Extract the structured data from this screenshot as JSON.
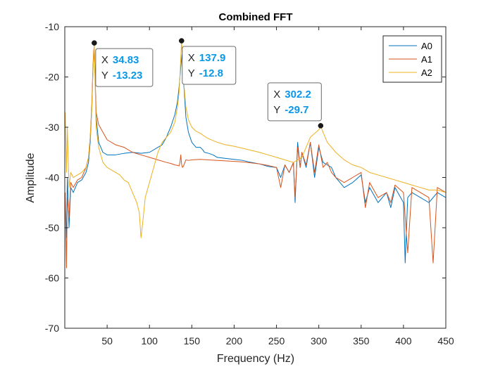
{
  "chart_data": {
    "type": "line",
    "title": "Combined FFT",
    "xlabel": "Frequency (Hz)",
    "ylabel": "Amplitude",
    "xlim": [
      0,
      450
    ],
    "ylim": [
      -70,
      -10
    ],
    "xticks": [
      50,
      100,
      150,
      200,
      250,
      300,
      350,
      400,
      450
    ],
    "yticks": [
      -70,
      -60,
      -50,
      -40,
      -30,
      -20,
      -10
    ],
    "grid": false,
    "legend_position": "top-right",
    "series": [
      {
        "name": "A0",
        "color": "#0072BD",
        "x": [
          0.5,
          2,
          3,
          5,
          7,
          10,
          15,
          20,
          25,
          28,
          30,
          32,
          33,
          34,
          34.83,
          35.5,
          37,
          40,
          45,
          50,
          60,
          70,
          80,
          90,
          100,
          110,
          115,
          120,
          125,
          130,
          133,
          135,
          137,
          138.5,
          140,
          143,
          146,
          150,
          155,
          160,
          163,
          165,
          170,
          175,
          180,
          190,
          200,
          210,
          220,
          230,
          240,
          250,
          255,
          260,
          265,
          270,
          272,
          275,
          278,
          280,
          285,
          290,
          295,
          300,
          305,
          310,
          315,
          320,
          330,
          340,
          350,
          355,
          360,
          370,
          380,
          385,
          390,
          400,
          402,
          405,
          410,
          420,
          430,
          440,
          450
        ],
        "y": [
          -45,
          -52,
          -40,
          -50,
          -42,
          -43,
          -41,
          -40.5,
          -39,
          -37,
          -33,
          -26,
          -20,
          -16,
          -14.5,
          -18,
          -28,
          -33,
          -35,
          -35.5,
          -35.5,
          -35.2,
          -35,
          -35.2,
          -35,
          -34,
          -33.5,
          -32,
          -30,
          -27.5,
          -25,
          -22,
          -18,
          -15.5,
          -20,
          -28,
          -31,
          -33,
          -34,
          -34,
          -34.5,
          -35,
          -35.2,
          -35.5,
          -36,
          -36.2,
          -36.4,
          -36.6,
          -37,
          -37.3,
          -37.8,
          -38,
          -40,
          -37.5,
          -39,
          -37,
          -45,
          -33,
          -38,
          -35,
          -38,
          -33,
          -40,
          -34,
          -37,
          -37.5,
          -38,
          -40,
          -42,
          -41,
          -39.5,
          -45,
          -42,
          -45,
          -43,
          -46,
          -42,
          -45,
          -57,
          -44,
          -43,
          -44,
          -45,
          -43,
          -44
        ]
      },
      {
        "name": "A1",
        "color": "#D95319",
        "x": [
          0.5,
          2,
          3,
          5,
          7,
          10,
          15,
          20,
          25,
          28,
          30,
          32,
          33,
          34,
          34.83,
          35.5,
          37,
          40,
          45,
          50,
          60,
          70,
          80,
          90,
          100,
          110,
          120,
          125,
          130,
          133,
          135,
          136,
          137,
          138,
          139,
          140,
          143,
          146,
          150,
          160,
          170,
          180,
          190,
          200,
          210,
          220,
          230,
          240,
          250,
          255,
          260,
          265,
          270,
          272,
          275,
          278,
          280,
          285,
          290,
          295,
          300,
          305,
          310,
          315,
          320,
          330,
          340,
          350,
          355,
          360,
          370,
          380,
          385,
          390,
          400,
          405,
          410,
          420,
          430,
          435,
          440,
          450
        ],
        "y": [
          -43,
          -58,
          -44,
          -48,
          -41,
          -42,
          -40.5,
          -40,
          -38,
          -36,
          -32,
          -25,
          -19,
          -15,
          -13.8,
          -18,
          -27,
          -29.5,
          -31,
          -32.5,
          -33.5,
          -34,
          -35,
          -35.5,
          -36,
          -36.5,
          -37,
          -37.2,
          -37.5,
          -37.6,
          -37.7,
          -37,
          -35.5,
          -37.5,
          -38,
          -37.8,
          -36.5,
          -36.6,
          -36.5,
          -36.4,
          -36.5,
          -36.6,
          -36.7,
          -36.8,
          -36.9,
          -37.1,
          -37.3,
          -37.6,
          -38,
          -42,
          -37.5,
          -39,
          -37,
          -44,
          -34,
          -38,
          -35,
          -37.5,
          -33,
          -39,
          -33.5,
          -38,
          -37,
          -39,
          -40,
          -41,
          -40,
          -39,
          -46,
          -41,
          -44,
          -43,
          -45,
          -41.5,
          -43,
          -55,
          -42,
          -43,
          -44,
          -57,
          -42,
          -43
        ]
      },
      {
        "name": "A2",
        "color": "#EDB120",
        "x": [
          0.5,
          2,
          3,
          5,
          7,
          10,
          15,
          20,
          25,
          28,
          30,
          32,
          33,
          34,
          34.83,
          35.5,
          37,
          40,
          45,
          50,
          55,
          60,
          65,
          70,
          75,
          80,
          85,
          88,
          90,
          92,
          95,
          100,
          105,
          110,
          115,
          120,
          125,
          130,
          133,
          135,
          136.5,
          137.9,
          139,
          141,
          143,
          146,
          150,
          155,
          160,
          165,
          170,
          180,
          190,
          200,
          210,
          220,
          230,
          240,
          250,
          260,
          270,
          280,
          290,
          300,
          302.2,
          305,
          310,
          320,
          330,
          340,
          350,
          360,
          370,
          380,
          390,
          400,
          410,
          420,
          430,
          440,
          450
        ],
        "y": [
          -27,
          -39,
          -30,
          -42,
          -39,
          -40,
          -39.5,
          -39,
          -38,
          -36,
          -32,
          -26,
          -20,
          -16,
          -13.23,
          -19,
          -30,
          -34,
          -37,
          -38,
          -38.5,
          -39,
          -39.5,
          -40.5,
          -41,
          -43,
          -45,
          -47,
          -52,
          -49,
          -44,
          -41,
          -38,
          -35,
          -33,
          -32,
          -31,
          -29,
          -26,
          -23,
          -18,
          -12.8,
          -16,
          -22,
          -26,
          -28.5,
          -30,
          -30.8,
          -31.2,
          -31.8,
          -32.3,
          -33,
          -33.5,
          -33.8,
          -34.2,
          -34.6,
          -35,
          -35.5,
          -36,
          -36.5,
          -37,
          -36,
          -32,
          -30.5,
          -29.7,
          -31,
          -33,
          -35,
          -36.5,
          -37.5,
          -38,
          -39,
          -39.5,
          -40,
          -40.5,
          -41,
          -41.5,
          -42,
          -42.5,
          -42.5,
          -43
        ]
      }
    ],
    "datatips": [
      {
        "x": 34.83,
        "y": -13.23,
        "x_label": "X",
        "y_label": "Y",
        "x_value": "34.83",
        "y_value": "-13.23"
      },
      {
        "x": 137.9,
        "y": -12.8,
        "x_label": "X",
        "y_label": "Y",
        "x_value": "137.9",
        "y_value": "-12.8"
      },
      {
        "x": 302.2,
        "y": -29.7,
        "x_label": "X",
        "y_label": "Y",
        "x_value": "302.2",
        "y_value": "-29.7"
      }
    ]
  }
}
